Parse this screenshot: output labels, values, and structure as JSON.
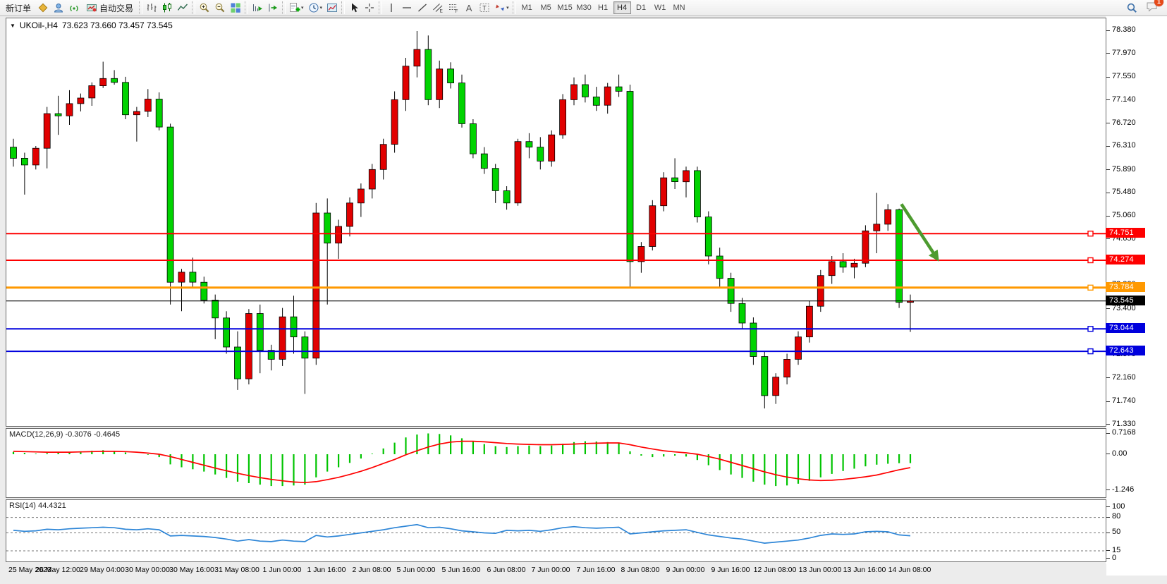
{
  "toolbar": {
    "new_order_label": "新订单",
    "autotrading_label": "自动交易",
    "timeframes": [
      "M1",
      "M5",
      "M15",
      "M30",
      "H1",
      "H4",
      "D1",
      "W1",
      "MN"
    ],
    "active_timeframe": "H4",
    "notification_count": "1"
  },
  "icons": {
    "caret": "▾",
    "symbol_caret": "▼",
    "text_tool": "A",
    "label_tool": "T",
    "channel_letter": "E",
    "fibo_letter": "F"
  },
  "chart": {
    "title_symbol": "UKOil-,H4",
    "title_ohlc": "73.623 73.660 73.457 73.545",
    "macd_label": "MACD(12,26,9) -0.3076 -0.4645",
    "rsi_label": "RSI(14) 44.4321"
  },
  "chart_data": [
    {
      "type": "candlestick",
      "title": "UKOil-,H4",
      "ohlc_display": "73.623 73.660 73.457 73.545",
      "up_color": "#e10000",
      "down_color": "#00d300",
      "ylim": [
        71.305,
        78.607
      ],
      "y_ticks": [
        "78.380",
        "77.970",
        "77.550",
        "77.140",
        "76.720",
        "76.310",
        "75.890",
        "75.480",
        "75.060",
        "74.650",
        "74.230",
        "73.820",
        "73.400",
        "72.990",
        "72.570",
        "72.160",
        "71.740",
        "71.330"
      ],
      "x_labels": [
        "25 May 2023",
        "26 May 12:00",
        "29 May 04:00",
        "30 May 00:00",
        "30 May 16:00",
        "31 May 08:00",
        "1 Jun 00:00",
        "1 Jun 16:00",
        "2 Jun 08:00",
        "5 Jun 00:00",
        "5 Jun 16:00",
        "6 Jun 08:00",
        "7 Jun 00:00",
        "7 Jun 16:00",
        "8 Jun 08:00",
        "9 Jun 00:00",
        "9 Jun 16:00",
        "12 Jun 08:00",
        "13 Jun 00:00",
        "13 Jun 16:00",
        "14 Jun 08:00"
      ],
      "x_label_every_n_bars": 4,
      "hlines": [
        {
          "price": 74.751,
          "label": "74.751",
          "color": "#fe0000",
          "width": 2
        },
        {
          "price": 74.274,
          "label": "74.274",
          "color": "#fe0000",
          "width": 2
        },
        {
          "price": 73.784,
          "label": "73.784",
          "color": "#ff9900",
          "width": 3
        },
        {
          "price": 73.044,
          "label": "73.044",
          "color": "#0000dd",
          "width": 2
        },
        {
          "price": 72.643,
          "label": "72.643",
          "color": "#0000dd",
          "width": 2
        }
      ],
      "current_price": {
        "price": 73.545,
        "label": "73.545",
        "color": "#000000"
      },
      "annotation_arrow": {
        "from_bar": 79.2,
        "from_price": 75.28,
        "to_bar": 82.4,
        "to_price": 74.3,
        "color": "#4d9b2f"
      },
      "candles": [
        [
          76.3,
          76.45,
          75.95,
          76.1
        ],
        [
          76.1,
          76.2,
          75.45,
          75.98
        ],
        [
          75.98,
          76.32,
          75.9,
          76.28
        ],
        [
          76.28,
          77.02,
          75.92,
          76.9
        ],
        [
          76.9,
          77.22,
          76.52,
          76.86
        ],
        [
          76.86,
          77.32,
          76.7,
          77.08
        ],
        [
          77.08,
          77.26,
          76.94,
          77.18
        ],
        [
          77.18,
          77.46,
          77.04,
          77.4
        ],
        [
          77.4,
          77.83,
          77.36,
          77.53
        ],
        [
          77.53,
          77.68,
          77.42,
          77.46
        ],
        [
          77.46,
          77.56,
          76.8,
          76.88
        ],
        [
          76.88,
          77.02,
          76.4,
          76.94
        ],
        [
          76.94,
          77.34,
          76.84,
          77.16
        ],
        [
          77.16,
          77.28,
          76.6,
          76.66
        ],
        [
          76.66,
          76.72,
          73.48,
          73.88
        ],
        [
          73.88,
          74.12,
          73.36,
          74.06
        ],
        [
          74.06,
          74.32,
          73.78,
          73.88
        ],
        [
          73.88,
          73.98,
          73.5,
          73.56
        ],
        [
          73.56,
          73.66,
          72.86,
          73.24
        ],
        [
          73.24,
          73.36,
          72.6,
          72.72
        ],
        [
          72.72,
          73.0,
          71.95,
          72.15
        ],
        [
          72.15,
          73.4,
          72.05,
          73.32
        ],
        [
          73.32,
          73.48,
          72.25,
          72.66
        ],
        [
          72.66,
          72.76,
          72.3,
          72.5
        ],
        [
          72.5,
          73.42,
          72.38,
          73.26
        ],
        [
          73.26,
          73.64,
          72.6,
          72.9
        ],
        [
          72.9,
          73.0,
          71.88,
          72.52
        ],
        [
          72.52,
          75.3,
          72.4,
          75.12
        ],
        [
          75.12,
          75.38,
          73.48,
          74.58
        ],
        [
          74.58,
          75.0,
          74.3,
          74.88
        ],
        [
          74.88,
          75.4,
          74.7,
          75.3
        ],
        [
          75.3,
          75.65,
          75.05,
          75.55
        ],
        [
          75.55,
          76.0,
          75.38,
          75.9
        ],
        [
          75.9,
          76.45,
          75.72,
          76.35
        ],
        [
          76.35,
          77.3,
          76.2,
          77.15
        ],
        [
          77.15,
          77.9,
          76.95,
          77.75
        ],
        [
          77.75,
          78.38,
          77.55,
          78.05
        ],
        [
          78.05,
          78.3,
          77.05,
          77.15
        ],
        [
          77.15,
          77.85,
          77.0,
          77.7
        ],
        [
          77.7,
          77.82,
          77.35,
          77.45
        ],
        [
          77.45,
          77.6,
          76.65,
          76.72
        ],
        [
          76.72,
          76.8,
          76.1,
          76.18
        ],
        [
          76.18,
          76.3,
          75.82,
          75.92
        ],
        [
          75.92,
          76.0,
          75.3,
          75.52
        ],
        [
          75.52,
          75.6,
          75.18,
          75.3
        ],
        [
          75.3,
          76.45,
          75.25,
          76.4
        ],
        [
          76.4,
          76.55,
          76.1,
          76.3
        ],
        [
          76.3,
          76.48,
          75.9,
          76.05
        ],
        [
          76.05,
          76.6,
          75.95,
          76.52
        ],
        [
          76.52,
          77.25,
          76.45,
          77.15
        ],
        [
          77.15,
          77.55,
          77.05,
          77.42
        ],
        [
          77.42,
          77.6,
          77.1,
          77.2
        ],
        [
          77.2,
          77.38,
          76.95,
          77.05
        ],
        [
          77.05,
          77.45,
          76.9,
          77.38
        ],
        [
          77.38,
          77.6,
          77.2,
          77.3
        ],
        [
          77.3,
          77.42,
          73.8,
          74.25
        ],
        [
          74.25,
          74.6,
          74.05,
          74.52
        ],
        [
          74.52,
          75.35,
          74.45,
          75.25
        ],
        [
          75.25,
          75.85,
          75.15,
          75.75
        ],
        [
          75.75,
          76.1,
          75.55,
          75.68
        ],
        [
          75.68,
          75.95,
          75.4,
          75.88
        ],
        [
          75.88,
          75.95,
          74.95,
          75.05
        ],
        [
          75.05,
          75.15,
          74.2,
          74.35
        ],
        [
          74.35,
          74.5,
          73.8,
          73.95
        ],
        [
          73.95,
          74.05,
          73.35,
          73.5
        ],
        [
          73.5,
          73.6,
          73.05,
          73.15
        ],
        [
          73.15,
          73.25,
          72.4,
          72.55
        ],
        [
          72.55,
          72.65,
          71.62,
          71.85
        ],
        [
          71.85,
          72.25,
          71.7,
          72.18
        ],
        [
          72.18,
          72.6,
          72.05,
          72.5
        ],
        [
          72.5,
          73.0,
          72.4,
          72.9
        ],
        [
          72.9,
          73.55,
          72.8,
          73.45
        ],
        [
          73.45,
          74.1,
          73.35,
          74.0
        ],
        [
          74.0,
          74.35,
          73.85,
          74.25
        ],
        [
          74.25,
          74.4,
          74.05,
          74.15
        ],
        [
          74.15,
          74.3,
          73.95,
          74.22
        ],
        [
          74.22,
          74.9,
          74.15,
          74.8
        ],
        [
          74.8,
          75.48,
          74.4,
          74.92
        ],
        [
          74.92,
          75.28,
          74.8,
          75.18
        ],
        [
          75.18,
          75.2,
          73.42,
          73.52
        ],
        [
          73.52,
          73.66,
          72.99,
          73.545
        ]
      ]
    },
    {
      "type": "macd",
      "label": "MACD(12,26,9) -0.3076 -0.4645",
      "params": "12,26,9",
      "current_values": {
        "macd": -0.3076,
        "signal": -0.4645
      },
      "y_ticks": [
        "0.7168",
        "0.00",
        "-1.246"
      ],
      "y_tick_values": [
        0.7168,
        0,
        -1.246
      ],
      "histogram_color": "#00c400",
      "signal_color": "#ff0000",
      "histogram": [
        0.08,
        0.05,
        0.02,
        0.04,
        0.06,
        0.08,
        0.1,
        0.12,
        0.14,
        0.12,
        0.06,
        0.0,
        -0.02,
        -0.1,
        -0.35,
        -0.45,
        -0.52,
        -0.6,
        -0.7,
        -0.82,
        -0.95,
        -1.0,
        -1.05,
        -1.1,
        -1.1,
        -1.08,
        -1.05,
        -0.8,
        -0.6,
        -0.45,
        -0.3,
        -0.15,
        0.02,
        0.2,
        0.4,
        0.58,
        0.68,
        0.72,
        0.7,
        0.65,
        0.55,
        0.45,
        0.35,
        0.28,
        0.25,
        0.28,
        0.3,
        0.28,
        0.3,
        0.36,
        0.42,
        0.45,
        0.44,
        0.42,
        0.38,
        0.1,
        -0.05,
        -0.1,
        -0.08,
        -0.05,
        -0.08,
        -0.2,
        -0.38,
        -0.55,
        -0.7,
        -0.82,
        -0.95,
        -1.05,
        -1.1,
        -1.08,
        -1.02,
        -0.92,
        -0.8,
        -0.68,
        -0.58,
        -0.5,
        -0.42,
        -0.36,
        -0.33,
        -0.31,
        -0.3076
      ],
      "signal_line": [
        0.1,
        0.09,
        0.08,
        0.07,
        0.07,
        0.07,
        0.08,
        0.09,
        0.1,
        0.1,
        0.09,
        0.07,
        0.04,
        0.0,
        -0.08,
        -0.18,
        -0.28,
        -0.38,
        -0.48,
        -0.57,
        -0.66,
        -0.74,
        -0.81,
        -0.87,
        -0.92,
        -0.96,
        -0.98,
        -0.95,
        -0.88,
        -0.8,
        -0.7,
        -0.59,
        -0.46,
        -0.32,
        -0.18,
        -0.02,
        0.12,
        0.25,
        0.35,
        0.42,
        0.45,
        0.45,
        0.43,
        0.4,
        0.37,
        0.35,
        0.34,
        0.33,
        0.33,
        0.34,
        0.35,
        0.37,
        0.38,
        0.39,
        0.39,
        0.33,
        0.25,
        0.18,
        0.12,
        0.08,
        0.05,
        0.0,
        -0.08,
        -0.17,
        -0.28,
        -0.39,
        -0.5,
        -0.61,
        -0.71,
        -0.79,
        -0.85,
        -0.89,
        -0.91,
        -0.9,
        -0.87,
        -0.83,
        -0.78,
        -0.72,
        -0.63,
        -0.54,
        -0.4645
      ]
    },
    {
      "type": "rsi",
      "label": "RSI(14) 44.4321",
      "current_value": 44.4321,
      "y_ticks": [
        "100",
        "80",
        "50",
        "15",
        "0"
      ],
      "y_tick_values": [
        100,
        80,
        50,
        15,
        0
      ],
      "levels": [
        80,
        50,
        15
      ],
      "line_color": "#2e86d7",
      "line": [
        55,
        53,
        54,
        57,
        56,
        58,
        59,
        60,
        61,
        60,
        57,
        56,
        58,
        56,
        44,
        45,
        44,
        43,
        41,
        38,
        34,
        37,
        34,
        33,
        36,
        34,
        33,
        45,
        42,
        44,
        47,
        50,
        53,
        56,
        60,
        63,
        66,
        60,
        61,
        58,
        54,
        52,
        50,
        49,
        55,
        54,
        55,
        53,
        56,
        60,
        62,
        60,
        59,
        60,
        61,
        48,
        50,
        52,
        54,
        55,
        56,
        51,
        46,
        43,
        40,
        38,
        34,
        30,
        32,
        34,
        36,
        40,
        45,
        48,
        47,
        48,
        52,
        53,
        52,
        46,
        44.43
      ]
    }
  ]
}
